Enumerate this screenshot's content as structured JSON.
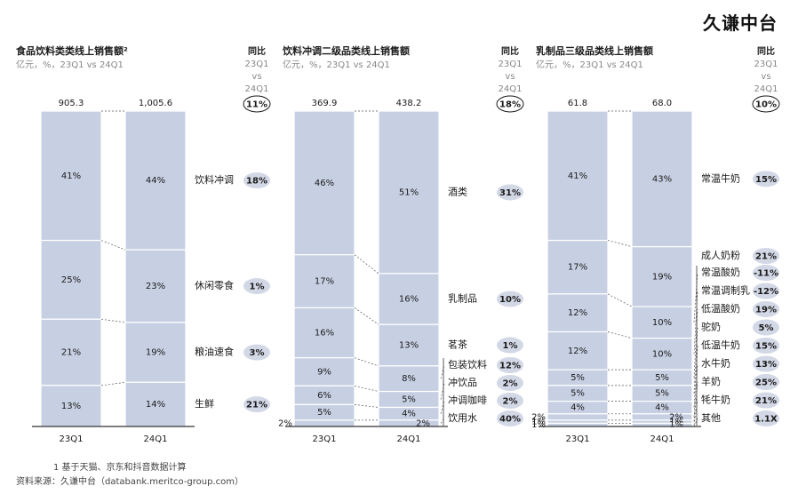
{
  "brand": "久谦中台",
  "yoy_header": [
    "同比",
    "23Q1",
    "vs",
    "24Q1"
  ],
  "footnote": "1   基于天猫、京东和抖音数据计算",
  "source": "资料来源：久谦中台（databank.meritco-group.com）",
  "colors": {
    "bar": "#c7d0e3",
    "pill": "#d3d8e6",
    "text": "#1a1a1a",
    "subtitle": "#888888"
  },
  "chart_data": [
    {
      "type": "stacked-bar-100",
      "title": "食品饮料类类线上销售额²",
      "subtitle": "亿元，%，23Q1 vs 24Q1",
      "categories": [
        "23Q1",
        "24Q1"
      ],
      "totals": [
        "905.3",
        "1,005.6"
      ],
      "total_growth": "11%",
      "series": [
        {
          "name": "饮料冲调",
          "values": [
            41,
            44
          ],
          "growth": "18%"
        },
        {
          "name": "休闲零食",
          "values": [
            25,
            23
          ],
          "growth": "1%"
        },
        {
          "name": "粮油速食",
          "values": [
            21,
            19
          ],
          "growth": "3%"
        },
        {
          "name": "生鲜",
          "values": [
            13,
            14
          ],
          "growth": "21%"
        }
      ]
    },
    {
      "type": "stacked-bar-100",
      "title": "饮料冲调二级品类线上销售额",
      "subtitle": "亿元，%，23Q1 vs 24Q1",
      "categories": [
        "23Q1",
        "24Q1"
      ],
      "totals": [
        "369.9",
        "438.2"
      ],
      "total_growth": "18%",
      "series": [
        {
          "name": "酒类",
          "values": [
            46,
            51
          ],
          "growth": "31%"
        },
        {
          "name": "乳制品",
          "values": [
            17,
            16
          ],
          "growth": "10%"
        },
        {
          "name": "茗茶",
          "values": [
            16,
            13
          ],
          "growth": "1%"
        },
        {
          "name": "包装饮料",
          "values": [
            9,
            8
          ],
          "growth": "12%"
        },
        {
          "name": "冲饮品",
          "values": [
            6,
            5
          ],
          "growth": "2%"
        },
        {
          "name": "冲调咖啡",
          "values": [
            5,
            4
          ],
          "growth": "2%"
        },
        {
          "name": "饮用水",
          "values": [
            2,
            2
          ],
          "growth": "40%"
        }
      ]
    },
    {
      "type": "stacked-bar-100",
      "title": "乳制品三级品类线上销售额",
      "subtitle": "亿元，%，23Q1 vs 24Q1",
      "categories": [
        "23Q1",
        "24Q1"
      ],
      "totals": [
        "61.8",
        "68.0"
      ],
      "total_growth": "10%",
      "series": [
        {
          "name": "常温牛奶",
          "values": [
            41,
            43
          ],
          "growth": "15%"
        },
        {
          "name": "成人奶粉",
          "values": [
            17,
            19
          ],
          "growth": "21%"
        },
        {
          "name": "常温酸奶",
          "values": [
            12,
            10
          ],
          "growth": "-11%"
        },
        {
          "name": "常温调制乳",
          "values": [
            12,
            10
          ],
          "growth": "-12%"
        },
        {
          "name": "低温酸奶",
          "values": [
            5,
            5
          ],
          "growth": "19%"
        },
        {
          "name": "驼奶",
          "values": [
            5,
            5
          ],
          "growth": "5%"
        },
        {
          "name": "低温牛奶",
          "values": [
            4,
            4
          ],
          "growth": "15%"
        },
        {
          "name": "水牛奶",
          "values": [
            2,
            2
          ],
          "growth": "13%"
        },
        {
          "name": "羊奶",
          "values": [
            1,
            1
          ],
          "growth": "25%"
        },
        {
          "name": "牦牛奶",
          "values": [
            1,
            1
          ],
          "growth": "21%"
        },
        {
          "name": "其他",
          "values": [
            0,
            0
          ],
          "growth": "1.1X"
        }
      ]
    }
  ]
}
